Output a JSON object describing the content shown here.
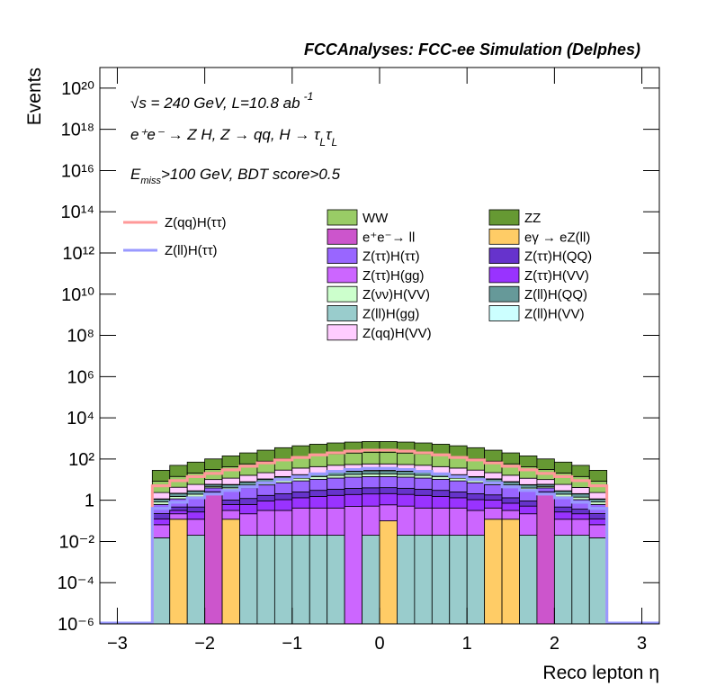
{
  "chart_data": {
    "type": "histogram",
    "title": "FCCAnalyses: FCC-ee Simulation (Delphes)",
    "x_label": "Reco lepton η",
    "y_label": "Events",
    "annotations": [
      [
        "√s = 240 GeV, L=10.8 ab",
        "-1"
      ],
      [
        "e⁺e⁻ → Z H, Z  → qq, H  → τ",
        "L",
        "τ",
        "L"
      ],
      [
        "E",
        "miss",
        ">100 GeV, BDT score>0.5"
      ]
    ],
    "log_y": true,
    "xlim": [
      -3.2,
      3.2
    ],
    "ylim": [
      1e-06,
      1e+21
    ],
    "xticks": [
      {
        "value": -3,
        "label": "−3"
      },
      {
        "value": -2,
        "label": "−2"
      },
      {
        "value": -1,
        "label": "−1"
      },
      0,
      1,
      2,
      3
    ],
    "yticks": [
      {
        "value": 1e-06,
        "label": "10⁻⁶"
      },
      {
        "value": 0.0001,
        "label": "10⁻⁴"
      },
      {
        "value": 0.01,
        "label": "10⁻²"
      },
      1,
      {
        "value": 100.0,
        "label": "10²"
      },
      {
        "value": 10000.0,
        "label": "10⁴"
      },
      {
        "value": 1000000.0,
        "label": "10⁶"
      },
      {
        "value": 100000000.0,
        "label": "10⁸"
      },
      {
        "value": 10000000000.0,
        "label": "10¹⁰"
      },
      {
        "value": 1000000000000.0,
        "label": "10¹²"
      },
      {
        "value": 100000000000000.0,
        "label": "10¹⁴"
      },
      {
        "value": 1e+16,
        "label": "10¹⁶"
      },
      {
        "value": 1e+18,
        "label": "10¹⁸"
      },
      {
        "value": 1e+20,
        "label": "10²⁰"
      }
    ],
    "bins": [
      -2.6,
      -2.4,
      -2.2,
      -2,
      -1.8,
      -1.6,
      -1.4,
      -1.2,
      -1,
      -0.8,
      -0.6,
      -0.4,
      -0.2,
      0,
      0.2,
      0.4,
      0.6,
      0.8,
      1,
      1.2,
      1.4,
      1.6,
      1.8,
      2,
      2.2,
      2.4,
      2.6
    ],
    "stacked": true,
    "series": [
      {
        "name": "Z(ll)H(gg)",
        "color": "#99cccc",
        "values": [
          0.015,
          0,
          0.02,
          0,
          0,
          0.02,
          0.02,
          0.02,
          0.02,
          0.02,
          0.02,
          0,
          0.02,
          0,
          0.02,
          0.02,
          0.02,
          0.02,
          0.02,
          0,
          0,
          0.02,
          0,
          0.02,
          0.02,
          0.015
        ]
      },
      {
        "name": "eγ → eZ(ll)",
        "color": "#ffcc66",
        "values": [
          0,
          0.12,
          0,
          0,
          0.12,
          0,
          0,
          0,
          0,
          0,
          0,
          0,
          0,
          0.1,
          0,
          0,
          0,
          0,
          0,
          0.12,
          0.12,
          0,
          0,
          0,
          0,
          0
        ]
      },
      {
        "name": "e⁺e⁻→ ll",
        "color": "#cc55cc",
        "values": [
          0,
          0,
          0,
          2,
          0,
          0,
          0,
          0,
          0,
          0,
          0,
          0,
          0,
          0,
          0,
          0,
          0,
          0,
          0,
          0,
          0,
          0,
          2,
          0,
          0,
          0
        ]
      },
      {
        "name": "Z(ττ)H(gg)",
        "color": "#cc66ff",
        "values": [
          0.05,
          0.1,
          0.1,
          0.1,
          0.2,
          0.2,
          0.3,
          0.3,
          0.4,
          0.4,
          0.4,
          0.5,
          0.5,
          0.5,
          0.5,
          0.4,
          0.4,
          0.4,
          0.3,
          0.3,
          0.2,
          0.2,
          0.1,
          0.1,
          0.1,
          0.05
        ]
      },
      {
        "name": "Z(ττ)H(VV)",
        "color": "#9933ff",
        "values": [
          0.06,
          0.1,
          0.15,
          0.2,
          0.3,
          0.4,
          0.6,
          0.75,
          0.9,
          1.1,
          1.3,
          1.4,
          1.5,
          1.5,
          1.4,
          1.3,
          1.1,
          0.9,
          0.75,
          0.6,
          0.4,
          0.3,
          0.2,
          0.15,
          0.1,
          0.06
        ]
      },
      {
        "name": "Z(ττ)H(QQ)",
        "color": "#6633cc",
        "values": [
          0.1,
          0.15,
          0.2,
          0.3,
          0.4,
          0.6,
          0.8,
          1,
          1.2,
          1.5,
          1.7,
          1.9,
          2,
          2,
          1.9,
          1.7,
          1.5,
          1.2,
          1,
          0.8,
          0.6,
          0.4,
          0.3,
          0.2,
          0.15,
          0.1
        ]
      },
      {
        "name": "Z(ττ)H(ττ)",
        "color": "#9966ff",
        "values": [
          0.4,
          0.7,
          1,
          1.4,
          2,
          2.8,
          3.8,
          5,
          6.2,
          7.4,
          8.5,
          9.4,
          10,
          10,
          9.4,
          8.5,
          7.4,
          6.2,
          5,
          3.8,
          2.8,
          2,
          1.4,
          1,
          0.7,
          0.4
        ]
      },
      {
        "name": "Z(νν)H(VV)",
        "color": "#ccffcc",
        "values": [
          0.2,
          0.35,
          0.5,
          0.7,
          1,
          1.4,
          1.9,
          2.5,
          3.1,
          3.7,
          4.2,
          4.7,
          5,
          5,
          4.7,
          4.2,
          3.7,
          3.1,
          2.5,
          1.9,
          1.4,
          1,
          0.7,
          0.5,
          0.35,
          0.2
        ]
      },
      {
        "name": "Z(ll)H(QQ)",
        "color": "#669999",
        "values": [
          0.3,
          0.6,
          0.8,
          1.1,
          1.6,
          2.2,
          3,
          4,
          5,
          6,
          7,
          7.5,
          8,
          8,
          7.5,
          7,
          6,
          5,
          4,
          3,
          2.2,
          1.6,
          1.1,
          0.8,
          0.6,
          0.3
        ]
      },
      {
        "name": "Z(ll)H(VV)",
        "color": "#ccffff",
        "values": [
          0.04,
          0.07,
          0.1,
          0.14,
          0.2,
          0.28,
          0.38,
          0.5,
          0.62,
          0.74,
          0.85,
          0.94,
          1,
          1,
          0.94,
          0.85,
          0.74,
          0.62,
          0.5,
          0.38,
          0.28,
          0.2,
          0.14,
          0.1,
          0.07,
          0.04
        ]
      },
      {
        "name": "Z(qq)H(VV)",
        "color": "#ffccff",
        "values": [
          1.2,
          2.1,
          3,
          4.2,
          6,
          8.4,
          11,
          15,
          19,
          22,
          26,
          28,
          30,
          30,
          28,
          26,
          22,
          19,
          15,
          11,
          8.4,
          6,
          4.2,
          3,
          2.1,
          1.2
        ]
      },
      {
        "name": "WW",
        "color": "#99cc66",
        "values": [
          6,
          10,
          15,
          21,
          30,
          42,
          57,
          75,
          93,
          111,
          128,
          141,
          150,
          150,
          141,
          128,
          111,
          93,
          75,
          57,
          42,
          30,
          21,
          15,
          10,
          6
        ]
      },
      {
        "name": "ZZ",
        "color": "#669933",
        "values": [
          20,
          35,
          50,
          70,
          100,
          140,
          190,
          250,
          310,
          370,
          425,
          470,
          500,
          500,
          470,
          425,
          370,
          310,
          250,
          190,
          140,
          100,
          70,
          50,
          35,
          20
        ]
      }
    ],
    "lines": [
      {
        "name": "Z(qq)H(ττ)",
        "color": "#ff9999",
        "values": [
          5,
          9,
          14,
          20,
          30,
          45,
          65,
          90,
          120,
          160,
          200,
          240,
          270,
          270,
          240,
          200,
          160,
          120,
          90,
          65,
          45,
          30,
          20,
          14,
          9,
          5
        ]
      },
      {
        "name": "Z(ll)H(ττ)",
        "color": "#9999ff",
        "values": [
          0.4,
          0.8,
          1.3,
          2,
          3,
          4.5,
          7,
          10,
          14,
          19,
          25,
          31,
          35,
          35,
          31,
          25,
          19,
          14,
          10,
          7,
          4.5,
          3,
          2,
          1.3,
          0.8,
          0.4
        ]
      }
    ]
  }
}
